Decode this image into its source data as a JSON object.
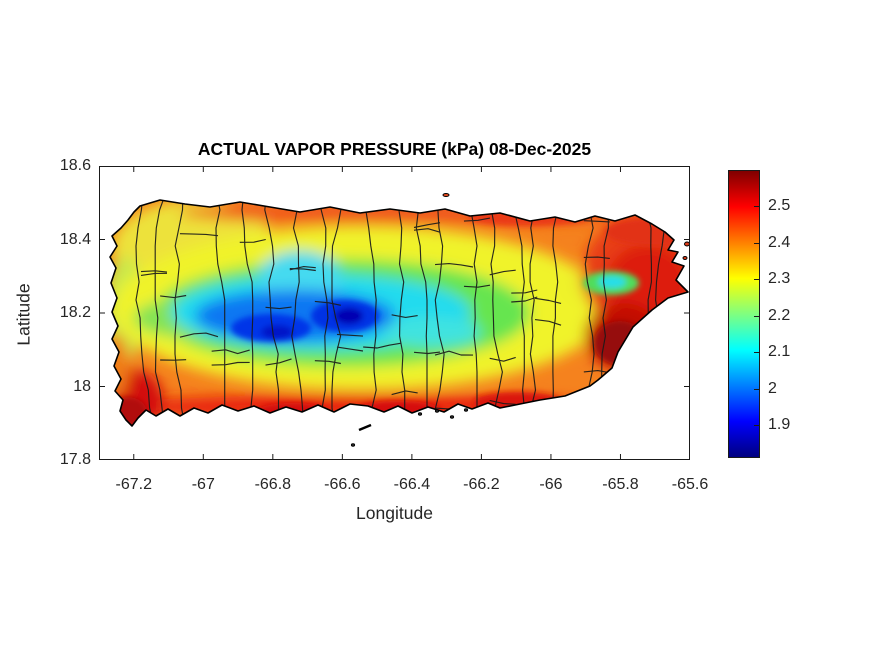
{
  "chart_data": {
    "type": "heatmap",
    "title": "ACTUAL VAPOR PRESSURE (kPa) 08-Dec-2025",
    "xlabel": "Longitude",
    "ylabel": "Latitude",
    "units": "kPa",
    "region": "Puerto Rico with municipal boundaries",
    "xlim": [
      -67.3,
      -65.6
    ],
    "ylim": [
      17.8,
      18.6
    ],
    "xticks": [
      -67.2,
      -67,
      -66.8,
      -66.6,
      -66.4,
      -66.2,
      -66,
      -65.8,
      -65.6
    ],
    "xtick_labels": [
      "-67.2",
      "-67",
      "-66.8",
      "-66.6",
      "-66.4",
      "-66.2",
      "-66",
      "-65.8",
      "-65.6"
    ],
    "yticks": [
      18.6,
      18.4,
      18.2,
      18,
      17.8
    ],
    "ytick_labels": [
      "18.6",
      "18.4",
      "18.2",
      "18",
      "17.8"
    ],
    "grid": false,
    "colormap": "jet",
    "colorbar": {
      "min": 1.81,
      "max": 2.6,
      "ticks": [
        2.5,
        2.4,
        2.3,
        2.2,
        2.1,
        2,
        1.9
      ],
      "tick_labels": [
        "2.5",
        "2.4",
        "2.3",
        "2.2",
        "2.1",
        "2",
        "1.9"
      ],
      "position": "right"
    },
    "grid_estimate": {
      "lon": [
        -67.2,
        -67,
        -66.8,
        -66.6,
        -66.4,
        -66.2,
        -66,
        -65.8,
        -65.6
      ],
      "lat": [
        18.45,
        18.3,
        18.2,
        18.05,
        17.95
      ],
      "values_kpa": [
        [
          null,
          2.4,
          2.35,
          2.4,
          2.4,
          2.45,
          2.45,
          2.45,
          null
        ],
        [
          2.3,
          2.25,
          2.1,
          2.2,
          2.25,
          2.3,
          2.35,
          2.2,
          2.45
        ],
        [
          2.35,
          2.15,
          1.95,
          1.9,
          2.05,
          2.15,
          2.25,
          2.4,
          2.5
        ],
        [
          2.45,
          2.3,
          2.2,
          2.15,
          2.25,
          2.3,
          2.35,
          2.5,
          null
        ],
        [
          2.5,
          2.45,
          2.4,
          2.45,
          2.5,
          2.45,
          2.5,
          null,
          null
        ]
      ]
    },
    "features": [
      {
        "name": "central-mountains-minimum",
        "lon": -66.65,
        "lat": 18.17,
        "approx_value": 1.85
      },
      {
        "name": "southeast-coast-maximum",
        "lon": -65.85,
        "lat": 18.06,
        "approx_value": 2.58
      },
      {
        "name": "southwest-coast-maximum",
        "lon": -67.15,
        "lat": 17.97,
        "approx_value": 2.52
      },
      {
        "name": "el-yunque-local-minimum",
        "lon": -65.79,
        "lat": 18.3,
        "approx_value": 2.1
      }
    ]
  },
  "layout_hints": {
    "legend": "none",
    "box": true,
    "tick_direction": "in"
  }
}
